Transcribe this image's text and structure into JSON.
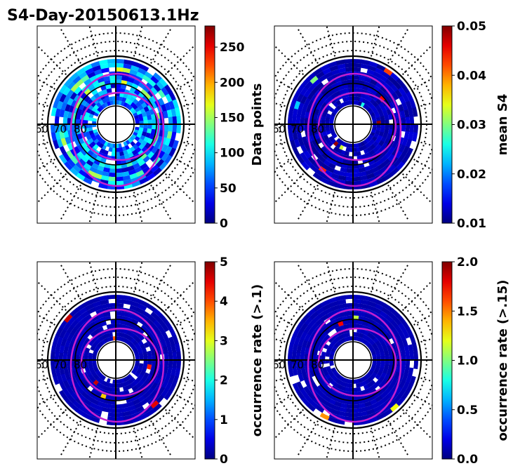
{
  "figure": {
    "title": "S4-Day-20150613.1Hz"
  },
  "chart_data": [
    {
      "type": "heatmap",
      "projection": "polar",
      "title": "S4-Day-20150613.1Hz",
      "colorbar": {
        "label": "Data points",
        "range": [
          0,
          280
        ],
        "ticks": [
          0,
          50,
          100,
          150,
          200,
          250
        ],
        "tick_labels": [
          "0",
          "50",
          "100",
          "150",
          "200",
          "250"
        ]
      },
      "latitude_labels": [
        "60",
        "70",
        "80"
      ],
      "field_level": "high",
      "annotations": [
        "magenta contour curves",
        "dotted latitude / longitude grid"
      ]
    },
    {
      "type": "heatmap",
      "projection": "polar",
      "colorbar": {
        "label": "mean S4",
        "range": [
          0.01,
          0.05
        ],
        "ticks": [
          0.01,
          0.02,
          0.03,
          0.04,
          0.05
        ],
        "tick_labels": [
          "0.01",
          "0.02",
          "0.03",
          "0.04",
          "0.05"
        ]
      },
      "latitude_labels": [
        "60",
        "70",
        "80"
      ],
      "field_level": "low"
    },
    {
      "type": "heatmap",
      "projection": "polar",
      "colorbar": {
        "label": "occurrence rate (>.1)",
        "range": [
          0,
          5
        ],
        "ticks": [
          0,
          1,
          2,
          3,
          4,
          5
        ],
        "tick_labels": [
          "0",
          "1",
          "2",
          "3",
          "4",
          "5"
        ]
      },
      "latitude_labels": [
        "60",
        "70",
        "80"
      ],
      "field_level": "zero"
    },
    {
      "type": "heatmap",
      "projection": "polar",
      "colorbar": {
        "label": "occurrence rate (>.15)",
        "range": [
          0,
          2
        ],
        "ticks": [
          0,
          0.5,
          1,
          1.5,
          2
        ],
        "tick_labels": [
          "0.0",
          "0.5",
          "1.0",
          "1.5",
          "2.0"
        ]
      },
      "latitude_labels": [
        "60",
        "70",
        "80"
      ],
      "field_level": "zero"
    }
  ]
}
